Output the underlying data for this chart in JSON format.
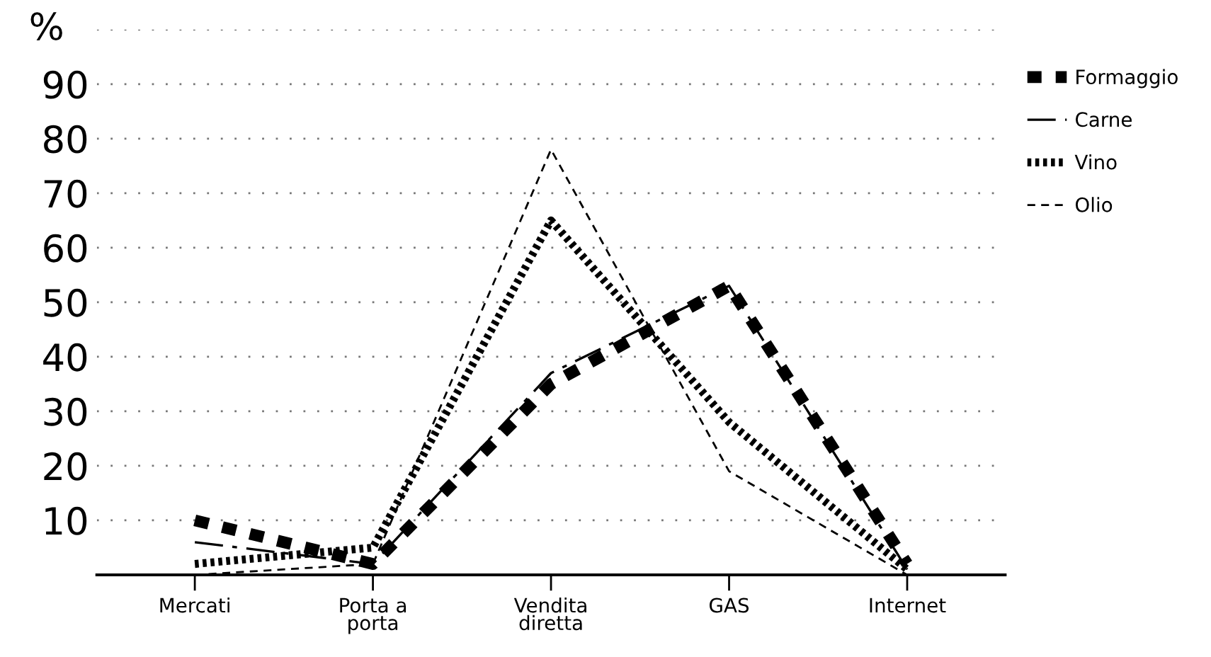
{
  "chart_data": {
    "type": "line",
    "ylabel": "%",
    "categories": [
      "Mercati",
      "Porta a\nporta",
      "Vendita\ndiretta",
      "GAS",
      "Internet"
    ],
    "series": [
      {
        "name": "Formaggio",
        "color": "#000000",
        "line_style": "dotted",
        "values": [
          10,
          2,
          35,
          53,
          2
        ]
      },
      {
        "name": "Carne",
        "color": "#000000",
        "line_style": "dashdot",
        "values": [
          6,
          2,
          37,
          53,
          1
        ]
      },
      {
        "name": "Vino",
        "color": "#000000",
        "line_style": "dotted",
        "values": [
          2,
          5,
          65,
          28,
          1
        ]
      },
      {
        "name": "Olio",
        "color": "#000000",
        "line_style": "dashed",
        "values": [
          0,
          2,
          78,
          19,
          0
        ]
      }
    ],
    "ylim": [
      0,
      100
    ],
    "yticks": [
      10,
      20,
      30,
      40,
      50,
      60,
      70,
      80,
      90,
      {
        "value": 100,
        "label": null
      }
    ],
    "grid": "y",
    "legend": "right",
    "marker": "none"
  }
}
